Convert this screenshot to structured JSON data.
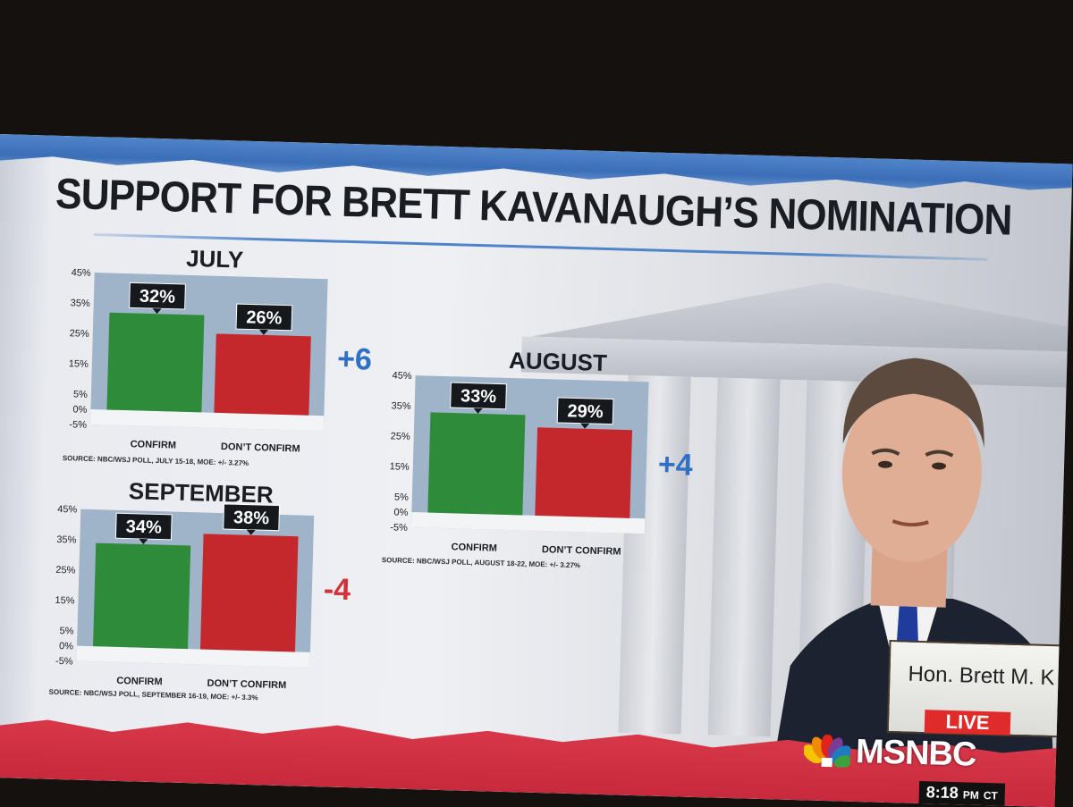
{
  "title": "SUPPORT FOR BRETT KAVANAUGH’S NOMINATION",
  "nameplate": "Hon. Brett M. K",
  "live_label": "LIVE",
  "network": "MSNBC",
  "clock": {
    "time": "8:18",
    "ampm": "PM",
    "zone": "CT"
  },
  "colors": {
    "confirm": "#2e8b3a",
    "dont_confirm": "#c4282c",
    "positive_delta": "#2f6fc4",
    "negative_delta": "#d0333a"
  },
  "chart_data": [
    {
      "type": "bar",
      "title": "JULY",
      "categories": [
        "CONFIRM",
        "DON’T CONFIRM"
      ],
      "values": [
        32,
        26
      ],
      "value_labels": [
        "32%",
        "26%"
      ],
      "yticks": [
        "45%",
        "35%",
        "25%",
        "15%",
        "5%",
        "0%",
        "-5%"
      ],
      "ylim": [
        -5,
        45
      ],
      "delta": "+6",
      "source": "SOURCE: NBC/WSJ POLL, JULY 15-18, MOE: +/- 3.27%"
    },
    {
      "type": "bar",
      "title": "AUGUST",
      "categories": [
        "CONFIRM",
        "DON’T CONFIRM"
      ],
      "values": [
        33,
        29
      ],
      "value_labels": [
        "33%",
        "29%"
      ],
      "yticks": [
        "45%",
        "35%",
        "25%",
        "15%",
        "5%",
        "0%",
        "-5%"
      ],
      "ylim": [
        -5,
        45
      ],
      "delta": "+4",
      "source": "SOURCE: NBC/WSJ POLL, AUGUST 18-22, MOE: +/- 3.27%"
    },
    {
      "type": "bar",
      "title": "SEPTEMBER",
      "categories": [
        "CONFIRM",
        "DON’T CONFIRM"
      ],
      "values": [
        34,
        38
      ],
      "value_labels": [
        "34%",
        "38%"
      ],
      "yticks": [
        "45%",
        "35%",
        "25%",
        "15%",
        "5%",
        "0%",
        "-5%"
      ],
      "ylim": [
        -5,
        45
      ],
      "delta": "-4",
      "source": "SOURCE: NBC/WSJ POLL, SEPTEMBER 16-19, MOE: +/- 3.3%"
    }
  ]
}
